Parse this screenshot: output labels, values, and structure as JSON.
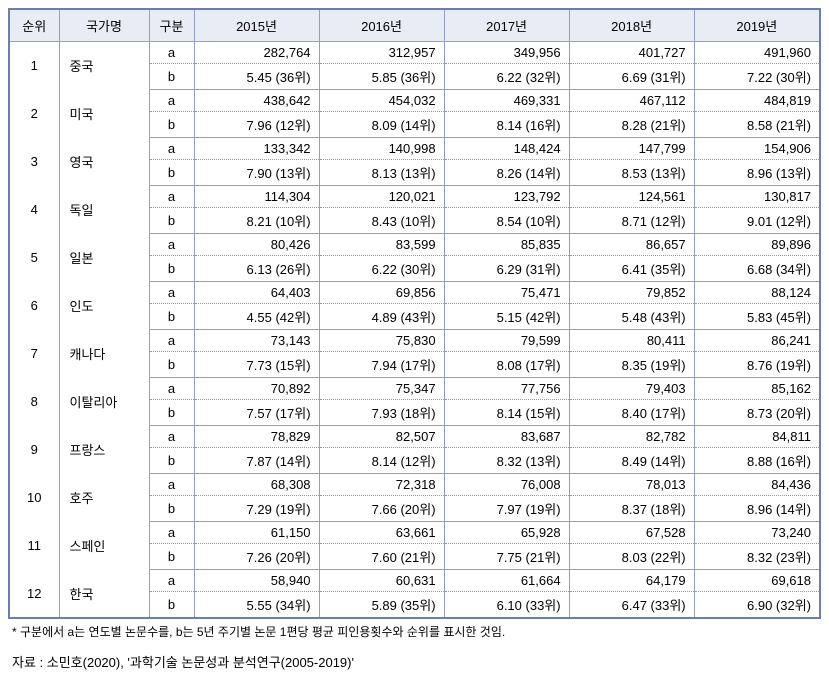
{
  "table": {
    "headers": [
      "순위",
      "국가명",
      "구분",
      "2015년",
      "2016년",
      "2017년",
      "2018년",
      "2019년"
    ],
    "rows": [
      {
        "rank": "1",
        "country": "중국",
        "a": [
          "282,764",
          "312,957",
          "349,956",
          "401,727",
          "491,960"
        ],
        "b": [
          "5.45 (36위)",
          "5.85 (36위)",
          "6.22 (32위)",
          "6.69 (31위)",
          "7.22 (30위)"
        ]
      },
      {
        "rank": "2",
        "country": "미국",
        "a": [
          "438,642",
          "454,032",
          "469,331",
          "467,112",
          "484,819"
        ],
        "b": [
          "7.96 (12위)",
          "8.09 (14위)",
          "8.14 (16위)",
          "8.28 (21위)",
          "8.58 (21위)"
        ]
      },
      {
        "rank": "3",
        "country": "영국",
        "a": [
          "133,342",
          "140,998",
          "148,424",
          "147,799",
          "154,906"
        ],
        "b": [
          "7.90 (13위)",
          "8.13 (13위)",
          "8.26 (14위)",
          "8.53 (13위)",
          "8.96 (13위)"
        ]
      },
      {
        "rank": "4",
        "country": "독일",
        "a": [
          "114,304",
          "120,021",
          "123,792",
          "124,561",
          "130,817"
        ],
        "b": [
          "8.21 (10위)",
          "8.43 (10위)",
          "8.54 (10위)",
          "8.71 (12위)",
          "9.01 (12위)"
        ]
      },
      {
        "rank": "5",
        "country": "일본",
        "a": [
          "80,426",
          "83,599",
          "85,835",
          "86,657",
          "89,896"
        ],
        "b": [
          "6.13 (26위)",
          "6.22 (30위)",
          "6.29 (31위)",
          "6.41 (35위)",
          "6.68 (34위)"
        ]
      },
      {
        "rank": "6",
        "country": "인도",
        "a": [
          "64,403",
          "69,856",
          "75,471",
          "79,852",
          "88,124"
        ],
        "b": [
          "4.55 (42위)",
          "4.89 (43위)",
          "5.15 (42위)",
          "5.48 (43위)",
          "5.83 (45위)"
        ]
      },
      {
        "rank": "7",
        "country": "캐나다",
        "a": [
          "73,143",
          "75,830",
          "79,599",
          "80,411",
          "86,241"
        ],
        "b": [
          "7.73 (15위)",
          "7.94 (17위)",
          "8.08 (17위)",
          "8.35 (19위)",
          "8.76 (19위)"
        ]
      },
      {
        "rank": "8",
        "country": "이탈리아",
        "a": [
          "70,892",
          "75,347",
          "77,756",
          "79,403",
          "85,162"
        ],
        "b": [
          "7.57 (17위)",
          "7.93 (18위)",
          "8.14 (15위)",
          "8.40 (17위)",
          "8.73 (20위)"
        ]
      },
      {
        "rank": "9",
        "country": "프랑스",
        "a": [
          "78,829",
          "82,507",
          "83,687",
          "82,782",
          "84,811"
        ],
        "b": [
          "7.87 (14위)",
          "8.14 (12위)",
          "8.32 (13위)",
          "8.49 (14위)",
          "8.88 (16위)"
        ]
      },
      {
        "rank": "10",
        "country": "호주",
        "a": [
          "68,308",
          "72,318",
          "76,008",
          "78,013",
          "84,436"
        ],
        "b": [
          "7.29 (19위)",
          "7.66 (20위)",
          "7.97 (19위)",
          "8.37 (18위)",
          "8.96 (14위)"
        ]
      },
      {
        "rank": "11",
        "country": "스페인",
        "a": [
          "61,150",
          "63,661",
          "65,928",
          "67,528",
          "73,240"
        ],
        "b": [
          "7.26 (20위)",
          "7.60 (21위)",
          "7.75 (21위)",
          "8.03 (22위)",
          "8.32 (23위)"
        ]
      },
      {
        "rank": "12",
        "country": "한국",
        "a": [
          "58,940",
          "60,631",
          "61,664",
          "64,179",
          "69,618"
        ],
        "b": [
          "5.55 (34위)",
          "5.89 (35위)",
          "6.10 (33위)",
          "6.47 (33위)",
          "6.90 (32위)"
        ]
      }
    ]
  },
  "footnote": "* 구분에서 a는 연도별 논문수를, b는 5년 주기별 논문 1편당 평균 피인용횟수와 순위를 표시한 것임.",
  "source": "자료 : 소민호(2020), '과학기술 논문성과 분석연구(2005-2019)'"
}
